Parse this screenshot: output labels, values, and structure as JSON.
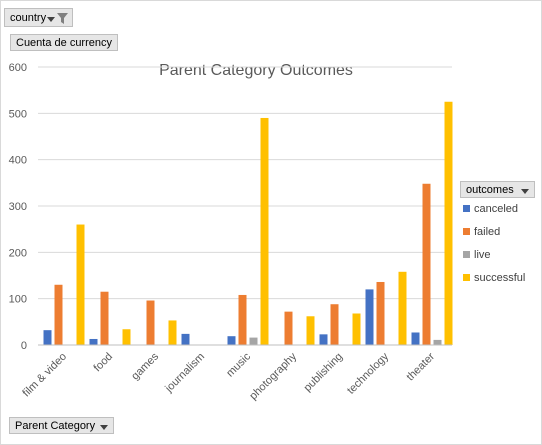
{
  "filters": {
    "country_label": "country",
    "value_label": "Cuenta de currency",
    "axis_field_label": "Parent Category",
    "legend_field_label": "outcomes"
  },
  "colors": {
    "canceled": "#4472c4",
    "failed": "#ed7d31",
    "live": "#a5a5a5",
    "successful": "#ffc000",
    "grid": "#d9d9d9",
    "text": "#595959"
  },
  "chart_data": {
    "type": "bar",
    "title": "Parent Category Outcomes",
    "xlabel": "",
    "ylabel": "",
    "ylim": [
      0,
      600
    ],
    "yticks": [
      0,
      100,
      200,
      300,
      400,
      500,
      600
    ],
    "grid": true,
    "legend_position": "right",
    "categories": [
      "film & video",
      "food",
      "games",
      "journalism",
      "music",
      "photography",
      "publishing",
      "technology",
      "theater"
    ],
    "series": [
      {
        "name": "canceled",
        "values": [
          32,
          13,
          0,
          24,
          19,
          0,
          23,
          120,
          27
        ]
      },
      {
        "name": "failed",
        "values": [
          130,
          115,
          96,
          0,
          108,
          72,
          88,
          136,
          348
        ]
      },
      {
        "name": "live",
        "values": [
          0,
          1,
          0,
          0,
          16,
          0,
          0,
          0,
          11
        ]
      },
      {
        "name": "successful",
        "values": [
          260,
          34,
          53,
          0,
          490,
          62,
          68,
          158,
          525
        ]
      }
    ]
  }
}
